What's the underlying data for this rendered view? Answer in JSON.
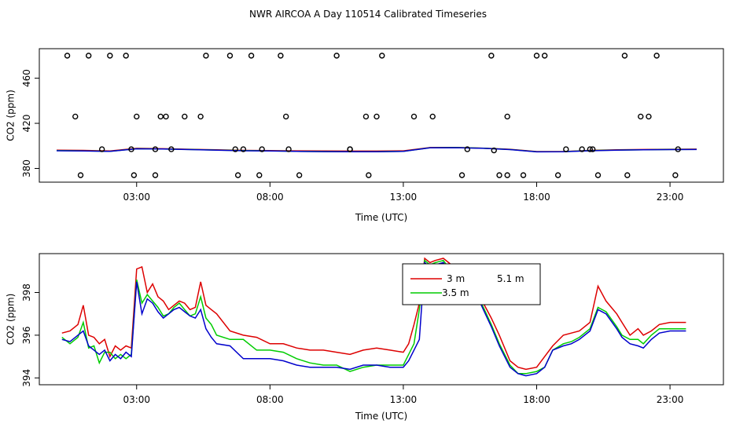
{
  "title": "NWR AIRCOA A  Day 110514  Calibrated Timeseries",
  "colors": {
    "red": "#dd0000",
    "green": "#00cc00",
    "blue": "#0000cc",
    "axis": "#000000"
  },
  "chart_data": [
    {
      "type": "line",
      "panel": "top",
      "xlabel": "Time (UTC)",
      "ylabel": "CO2 (ppm)",
      "xlim": [
        0,
        24
      ],
      "ylim": [
        372,
        482
      ],
      "xticks": [
        3,
        8,
        13,
        18,
        23
      ],
      "xtick_labels": [
        "03:00",
        "08:00",
        "13:00",
        "18:00",
        "23:00"
      ],
      "yticks": [
        380,
        420,
        460
      ],
      "ytick_labels": [
        "380",
        "420",
        "460"
      ],
      "circles": {
        "series_name": "calibration points",
        "x": [
          1.7,
          2.9,
          4.3,
          5.4,
          6.8,
          7.7,
          8.7,
          9.1,
          12.0,
          14.1,
          15.2,
          16.4,
          16.9,
          17.5,
          18.3,
          19.1,
          19.7,
          20.3,
          21.9,
          23.2,
          0.4,
          0.7,
          1.2,
          2.0,
          2.8,
          3.7,
          3.9,
          4.8,
          6.5,
          7.0,
          7.3,
          8.6,
          11.0,
          11.7,
          12.2,
          15.4,
          16.3,
          16.9,
          18.8,
          20.1,
          21.3,
          23.3,
          0.9,
          2.6,
          3.0,
          3.7,
          4.1,
          5.6,
          6.7,
          7.6,
          8.4,
          10.5,
          11.0,
          11.6,
          13.4,
          16.6,
          18.0,
          20.0,
          21.4,
          22.2,
          22.5
        ],
        "y": [
          397,
          374,
          397,
          426,
          374,
          397,
          397,
          374,
          426,
          426,
          374,
          396,
          374,
          374,
          480,
          397,
          397,
          374,
          426,
          374,
          480,
          426,
          480,
          480,
          397,
          374,
          426,
          426,
          480,
          397,
          480,
          426,
          397,
          374,
          480,
          397,
          480,
          426,
          374,
          397,
          480,
          397,
          374,
          480,
          426,
          397,
          426,
          480,
          397,
          374,
          480,
          480,
          397,
          426,
          426,
          374,
          480,
          397,
          374,
          426,
          480
        ]
      },
      "series": [
        {
          "name": "red",
          "x": [
            0,
            1,
            2,
            3,
            4,
            5,
            6,
            7,
            8,
            9,
            10,
            11,
            12,
            13,
            14,
            15,
            16,
            17,
            18,
            19,
            20,
            21,
            22,
            23,
            24
          ],
          "values": [
            396.2,
            396.0,
            395.5,
            397.8,
            397.5,
            397.0,
            396.5,
            396.0,
            395.9,
            395.6,
            395.5,
            395.4,
            395.4,
            395.6,
            398.5,
            398.6,
            398.0,
            397.0,
            395.0,
            395.0,
            396.0,
            396.5,
            396.8,
            397.0,
            397.1
          ]
        },
        {
          "name": "green",
          "x": [
            0,
            1,
            2,
            3,
            4,
            5,
            6,
            7,
            8,
            9,
            10,
            11,
            12,
            13,
            14,
            15,
            16,
            17,
            18,
            19,
            20,
            21,
            22,
            23,
            24
          ],
          "values": [
            395.8,
            395.6,
            395.2,
            397.5,
            397.3,
            396.8,
            396.3,
            395.8,
            395.6,
            395.2,
            395.0,
            394.9,
            394.9,
            395.2,
            398.4,
            398.5,
            397.9,
            396.8,
            394.8,
            394.9,
            395.8,
            396.3,
            396.6,
            396.8,
            396.9
          ]
        },
        {
          "name": "blue",
          "x": [
            0,
            1,
            2,
            3,
            4,
            5,
            6,
            7,
            8,
            9,
            10,
            11,
            12,
            13,
            14,
            15,
            16,
            17,
            18,
            19,
            20,
            21,
            22,
            23,
            24
          ],
          "values": [
            395.7,
            395.5,
            395.1,
            397.4,
            397.2,
            396.7,
            396.2,
            395.7,
            395.5,
            395.1,
            394.9,
            394.8,
            394.8,
            395.1,
            398.3,
            398.4,
            397.8,
            396.7,
            394.7,
            394.8,
            395.7,
            396.2,
            396.5,
            396.7,
            396.8
          ]
        }
      ]
    },
    {
      "type": "line",
      "panel": "bottom",
      "xlabel": "Time (UTC)",
      "ylabel": "CO2 (ppm)",
      "xlim": [
        0,
        24
      ],
      "ylim": [
        393.9,
        399.6
      ],
      "xticks": [
        3,
        8,
        13,
        18,
        23
      ],
      "xtick_labels": [
        "03:00",
        "08:00",
        "13:00",
        "18:00",
        "23:00"
      ],
      "yticks": [
        394,
        396,
        398
      ],
      "ytick_labels": [
        "394",
        "396",
        "398"
      ],
      "legend": {
        "position": "top-right",
        "entries": [
          "3 m",
          "3.5 m",
          "5.1 m"
        ]
      },
      "series": [
        {
          "name": "3 m",
          "color_key": "red",
          "x": [
            0.2,
            0.5,
            0.8,
            1.0,
            1.2,
            1.4,
            1.6,
            1.8,
            2.0,
            2.2,
            2.4,
            2.6,
            2.8,
            3.0,
            3.2,
            3.4,
            3.6,
            3.8,
            4.0,
            4.2,
            4.4,
            4.6,
            4.8,
            5.0,
            5.2,
            5.4,
            5.6,
            5.8,
            6.0,
            6.5,
            7.0,
            7.5,
            8.0,
            8.5,
            9.0,
            9.5,
            10.0,
            10.5,
            11.0,
            11.5,
            12.0,
            12.5,
            13.0,
            13.2,
            13.4,
            13.6,
            13.8,
            14.0,
            14.2,
            14.5,
            14.8,
            15.0,
            15.3,
            15.6,
            16.0,
            16.3,
            16.6,
            17.0,
            17.3,
            17.6,
            18.0,
            18.3,
            18.6,
            19.0,
            19.3,
            19.6,
            20.0,
            20.3,
            20.6,
            21.0,
            21.2,
            21.5,
            21.8,
            22.0,
            22.3,
            22.6,
            23.0,
            23.3,
            23.6
          ],
          "values": [
            396.1,
            396.2,
            396.5,
            397.4,
            396.0,
            395.9,
            395.6,
            395.8,
            395.0,
            395.5,
            395.3,
            395.5,
            395.4,
            399.1,
            399.2,
            398.0,
            398.4,
            397.8,
            397.6,
            397.2,
            397.4,
            397.6,
            397.5,
            397.2,
            397.3,
            398.5,
            397.4,
            397.2,
            397.0,
            396.2,
            396.0,
            395.9,
            395.6,
            395.6,
            395.4,
            395.3,
            395.3,
            395.2,
            395.1,
            395.3,
            395.4,
            395.3,
            395.2,
            395.6,
            396.5,
            397.5,
            399.6,
            399.4,
            399.5,
            399.6,
            399.3,
            399.2,
            398.8,
            398.5,
            397.5,
            396.8,
            396.0,
            394.8,
            394.5,
            394.4,
            394.5,
            395.0,
            395.5,
            396.0,
            396.1,
            396.2,
            396.6,
            398.3,
            397.6,
            397.0,
            396.6,
            396.0,
            396.3,
            396.0,
            396.2,
            396.5,
            396.6,
            396.6,
            396.6
          ]
        },
        {
          "name": "3.5 m",
          "color_key": "green",
          "x": [
            0.2,
            0.5,
            0.8,
            1.0,
            1.2,
            1.4,
            1.6,
            1.8,
            2.0,
            2.2,
            2.4,
            2.6,
            2.8,
            3.0,
            3.2,
            3.4,
            3.6,
            3.8,
            4.0,
            4.2,
            4.4,
            4.6,
            4.8,
            5.0,
            5.2,
            5.4,
            5.6,
            5.8,
            6.0,
            6.5,
            7.0,
            7.5,
            8.0,
            8.5,
            9.0,
            9.5,
            10.0,
            10.5,
            11.0,
            11.5,
            12.0,
            12.5,
            13.0,
            13.2,
            13.4,
            13.6,
            13.8,
            14.0,
            14.2,
            14.5,
            14.8,
            15.0,
            15.3,
            15.6,
            16.0,
            16.3,
            16.6,
            17.0,
            17.3,
            17.6,
            18.0,
            18.3,
            18.6,
            19.0,
            19.3,
            19.6,
            20.0,
            20.3,
            20.6,
            21.0,
            21.2,
            21.5,
            21.8,
            22.0,
            22.3,
            22.6,
            23.0,
            23.3,
            23.6
          ],
          "values": [
            395.9,
            395.6,
            395.9,
            396.6,
            395.4,
            395.5,
            394.7,
            395.2,
            395.2,
            394.9,
            395.1,
            394.9,
            395.1,
            398.6,
            397.5,
            397.9,
            397.6,
            397.3,
            396.9,
            397.0,
            397.3,
            397.5,
            397.2,
            396.9,
            397.0,
            397.8,
            396.8,
            396.5,
            396.0,
            395.8,
            395.8,
            395.3,
            395.3,
            395.2,
            394.9,
            394.7,
            394.6,
            394.6,
            394.3,
            394.5,
            394.6,
            394.6,
            394.6,
            395.1,
            395.6,
            397.2,
            399.5,
            399.3,
            399.4,
            399.5,
            399.0,
            398.9,
            398.6,
            398.3,
            397.3,
            396.5,
            395.6,
            394.6,
            394.2,
            394.2,
            394.3,
            394.5,
            395.3,
            395.6,
            395.7,
            395.9,
            396.3,
            397.3,
            397.1,
            396.4,
            396.0,
            395.8,
            395.8,
            395.6,
            396.0,
            396.3,
            396.3,
            396.3,
            396.3
          ]
        },
        {
          "name": "5.1 m",
          "color_key": "blue",
          "x": [
            0.2,
            0.5,
            0.8,
            1.0,
            1.2,
            1.4,
            1.6,
            1.8,
            2.0,
            2.2,
            2.4,
            2.6,
            2.8,
            3.0,
            3.2,
            3.4,
            3.6,
            3.8,
            4.0,
            4.2,
            4.4,
            4.6,
            4.8,
            5.0,
            5.2,
            5.4,
            5.6,
            5.8,
            6.0,
            6.5,
            7.0,
            7.5,
            8.0,
            8.5,
            9.0,
            9.5,
            10.0,
            10.5,
            11.0,
            11.5,
            12.0,
            12.5,
            13.0,
            13.2,
            13.4,
            13.6,
            13.8,
            14.0,
            14.2,
            14.5,
            14.8,
            15.0,
            15.3,
            15.6,
            16.0,
            16.3,
            16.6,
            17.0,
            17.3,
            17.6,
            18.0,
            18.3,
            18.6,
            19.0,
            19.3,
            19.6,
            20.0,
            20.3,
            20.6,
            21.0,
            21.2,
            21.5,
            21.8,
            22.0,
            22.3,
            22.6,
            23.0,
            23.3,
            23.6
          ],
          "values": [
            395.8,
            395.7,
            396.0,
            396.2,
            395.5,
            395.3,
            395.1,
            395.3,
            394.8,
            395.1,
            394.9,
            395.2,
            395.0,
            398.5,
            397.0,
            397.7,
            397.5,
            397.1,
            396.8,
            397.0,
            397.2,
            397.3,
            397.1,
            396.9,
            396.8,
            397.2,
            396.3,
            395.9,
            395.6,
            395.5,
            394.9,
            394.9,
            394.9,
            394.8,
            394.6,
            394.5,
            394.5,
            394.5,
            394.4,
            394.6,
            394.6,
            394.5,
            394.5,
            394.8,
            395.3,
            395.8,
            399.4,
            399.2,
            399.3,
            399.4,
            398.9,
            398.8,
            398.6,
            398.3,
            397.2,
            396.4,
            395.5,
            394.5,
            394.2,
            394.1,
            394.2,
            394.5,
            395.3,
            395.5,
            395.6,
            395.8,
            396.2,
            397.2,
            397.0,
            396.3,
            395.9,
            395.6,
            395.5,
            395.4,
            395.8,
            396.1,
            396.2,
            396.2,
            396.2
          ]
        }
      ]
    }
  ]
}
